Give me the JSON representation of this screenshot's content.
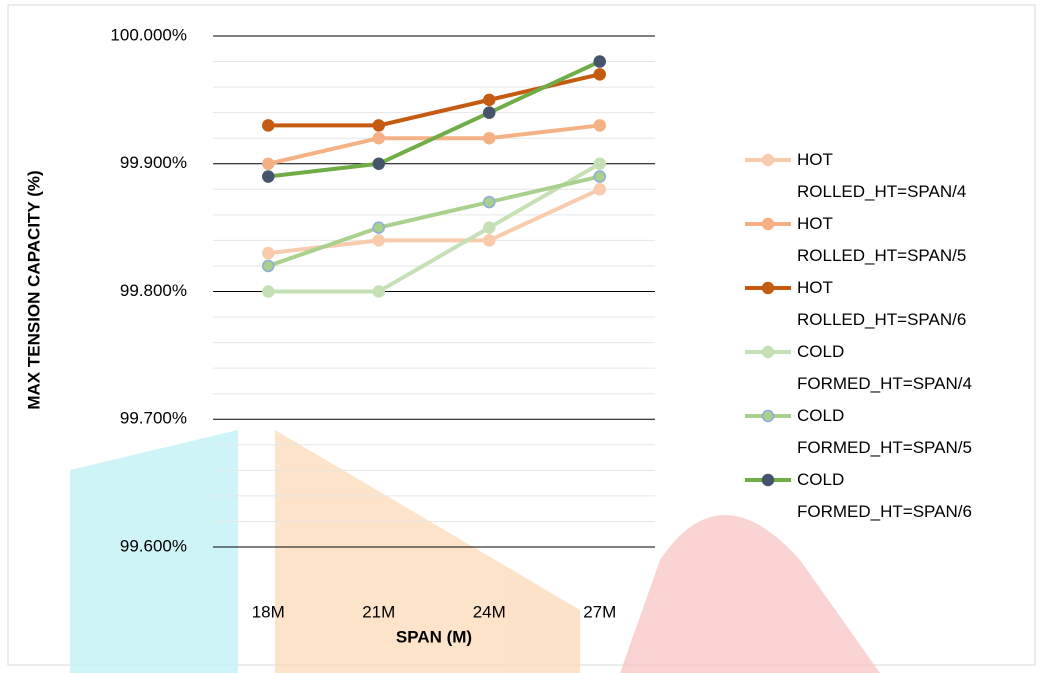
{
  "chart_data": {
    "type": "line",
    "ylabel": "MAX  TENSION CAPACITY (%)",
    "xlabel": "SPAN (M)",
    "categories": [
      "18M",
      "21M",
      "24M",
      "27M"
    ],
    "ylim": [
      99.6,
      100.0
    ],
    "yticks": [
      {
        "value": 99.6,
        "label": "99.600%"
      },
      {
        "value": 99.7,
        "label": "99.700%"
      },
      {
        "value": 99.8,
        "label": "99.800%"
      },
      {
        "value": 99.9,
        "label": "99.900%"
      },
      {
        "value": 100.0,
        "label": "100.000%"
      }
    ],
    "minor_yticks": [
      99.62,
      99.64,
      99.66,
      99.68,
      99.72,
      99.74,
      99.76,
      99.78,
      99.82,
      99.84,
      99.86,
      99.88,
      99.92,
      99.94,
      99.96,
      99.98
    ],
    "grid": true,
    "legend": "right",
    "series": [
      {
        "name": "HOT ROLLED_HT=SPAN/4",
        "color": "#f8cbad",
        "marker_edge": "#f8cbad",
        "values": [
          99.83,
          99.84,
          99.84,
          99.88
        ]
      },
      {
        "name": "HOT ROLLED_HT=SPAN/5",
        "color": "#f4b183",
        "marker_edge": "#f4b183",
        "values": [
          99.9,
          99.92,
          99.92,
          99.93
        ]
      },
      {
        "name": "HOT ROLLED_HT=SPAN/6",
        "color": "#c55a11",
        "marker_edge": "#c55a11",
        "values": [
          99.93,
          99.93,
          99.95,
          99.97
        ]
      },
      {
        "name": "COLD FORMED_HT=SPAN/4",
        "color": "#c5e0b4",
        "marker_edge": "#c5e0b4",
        "values": [
          99.8,
          99.8,
          99.85,
          99.9
        ]
      },
      {
        "name": "COLD FORMED_HT=SPAN/5",
        "color": "#a9d18e",
        "marker_edge": "#8faadc",
        "values": [
          99.82,
          99.85,
          99.87,
          99.89
        ]
      },
      {
        "name": "COLD FORMED_HT=SPAN/6",
        "color": "#70ad47",
        "marker_edge": "#44546a",
        "marker_fill": "#44546a",
        "values": [
          99.89,
          99.9,
          99.94,
          99.98
        ]
      }
    ]
  }
}
